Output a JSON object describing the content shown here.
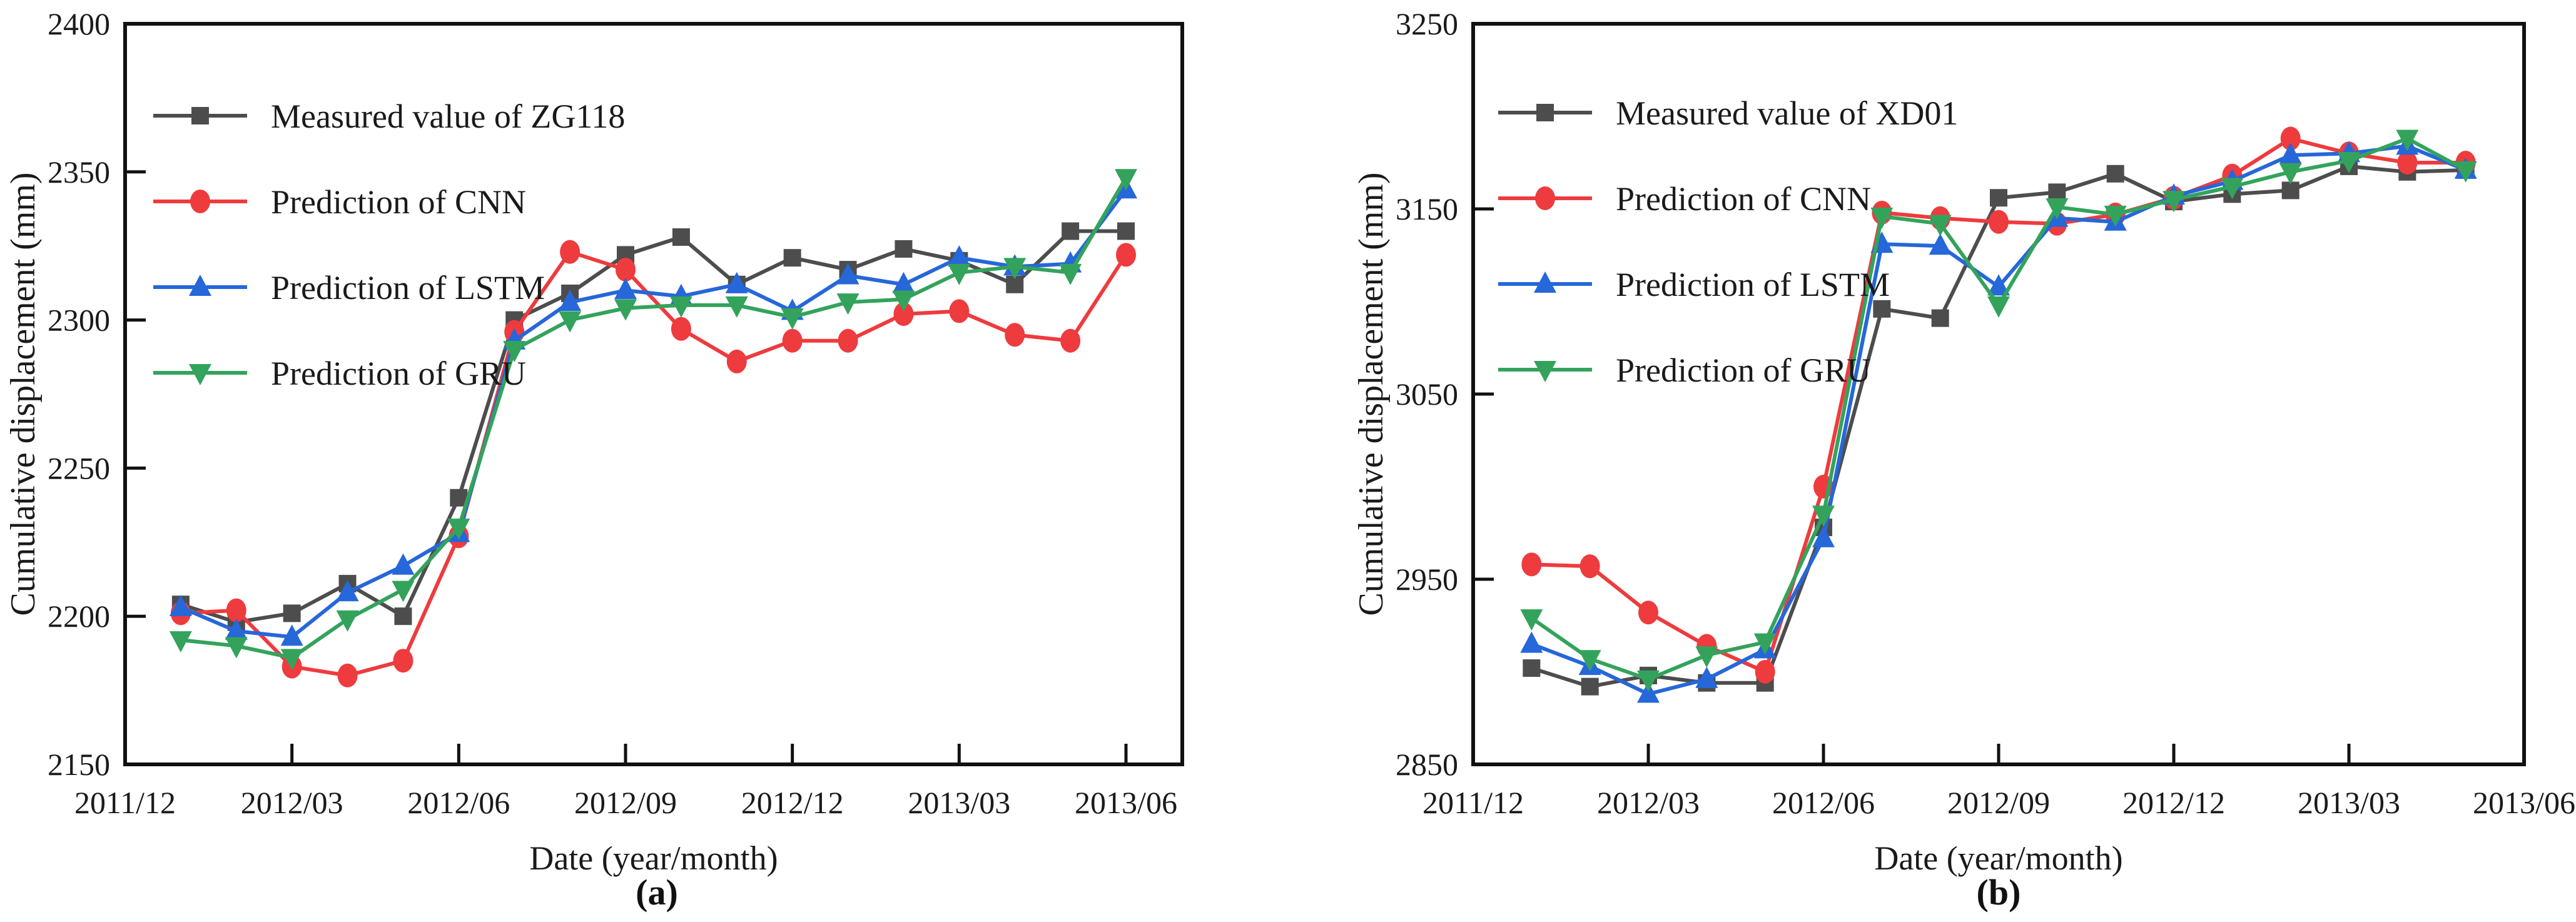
{
  "figure": {
    "background": "#ffffff",
    "caption_a": "(a)",
    "caption_b": "(b)"
  },
  "chart_data": [
    {
      "id": "a",
      "type": "line",
      "caption": "(a)",
      "xlabel": "Date (year/month)",
      "ylabel": "Cumulative displacement (mm)",
      "ylim": [
        2150,
        2400
      ],
      "yticks": [
        2150,
        2200,
        2250,
        2300,
        2350,
        2400
      ],
      "xtick_labels": [
        "2011/12",
        "2012/03",
        "2012/06",
        "2012/09",
        "2012/12",
        "2013/03",
        "2013/06"
      ],
      "xtick_months": [
        0,
        3,
        6,
        9,
        12,
        15,
        18
      ],
      "x_months": [
        1,
        2,
        3,
        4,
        5,
        6,
        7,
        8,
        9,
        10,
        11,
        12,
        13,
        14,
        15,
        16,
        17,
        18
      ],
      "grid": false,
      "legend_position": "top-left",
      "series": [
        {
          "name": "Measured value of ZG118",
          "color": "#4d4d4d",
          "marker": "square",
          "values": [
            2204,
            2198,
            2201,
            2211,
            2200,
            2240,
            2300,
            2309,
            2322,
            2328,
            2312,
            2321,
            2317,
            2324,
            2320,
            2312,
            2330,
            2330
          ]
        },
        {
          "name": "Prediction of CNN",
          "color": "#ee3b3e",
          "marker": "circle",
          "values": [
            2201,
            2202,
            2183,
            2180,
            2185,
            2227,
            2296,
            2323,
            2317,
            2297,
            2286,
            2293,
            2293,
            2302,
            2303,
            2295,
            2293,
            2322
          ]
        },
        {
          "name": "Prediction of LSTM",
          "color": "#2667d9",
          "marker": "triangle-up",
          "values": [
            2203,
            2195,
            2193,
            2208,
            2217,
            2228,
            2293,
            2306,
            2310,
            2308,
            2312,
            2303,
            2315,
            2312,
            2321,
            2318,
            2319,
            2344
          ]
        },
        {
          "name": "Prediction of GRU",
          "color": "#33a35c",
          "marker": "triangle-down",
          "values": [
            2192,
            2190,
            2186,
            2199,
            2209,
            2230,
            2290,
            2300,
            2304,
            2305,
            2305,
            2301,
            2306,
            2307,
            2316,
            2318,
            2316,
            2348
          ]
        }
      ]
    },
    {
      "id": "b",
      "type": "line",
      "caption": "(b)",
      "xlabel": "Date (year/month)",
      "ylabel": "Cumulative displacement (mm)",
      "ylim": [
        2850,
        3250
      ],
      "yticks": [
        2850,
        2950,
        3050,
        3150,
        3250
      ],
      "xtick_labels": [
        "2011/12",
        "2012/03",
        "2012/06",
        "2012/09",
        "2012/12",
        "2013/03",
        "2013/06"
      ],
      "xtick_months": [
        0,
        3,
        6,
        9,
        12,
        15,
        18
      ],
      "x_months": [
        1,
        2,
        3,
        4,
        5,
        6,
        7,
        8,
        9,
        10,
        11,
        12,
        13,
        14,
        15,
        16,
        17
      ],
      "grid": false,
      "legend_position": "top-left",
      "series": [
        {
          "name": "Measured value of XD01",
          "color": "#4d4d4d",
          "marker": "square",
          "values": [
            2902,
            2892,
            2898,
            2894,
            2894,
            2978,
            3096,
            3091,
            3156,
            3159,
            3169,
            3154,
            3158,
            3160,
            3173,
            3170,
            3171
          ]
        },
        {
          "name": "Prediction of CNN",
          "color": "#ee3b3e",
          "marker": "circle",
          "values": [
            2958,
            2957,
            2932,
            2914,
            2900,
            3000,
            3148,
            3145,
            3143,
            3142,
            3147,
            3156,
            3168,
            3188,
            3180,
            3175,
            3175
          ]
        },
        {
          "name": "Prediction of LSTM",
          "color": "#2667d9",
          "marker": "triangle-up",
          "values": [
            2915,
            2903,
            2888,
            2896,
            2912,
            2972,
            3131,
            3130,
            3108,
            3145,
            3143,
            3157,
            3165,
            3179,
            3180,
            3184,
            3171
          ]
        },
        {
          "name": "Prediction of GRU",
          "color": "#33a35c",
          "marker": "triangle-down",
          "values": [
            2929,
            2907,
            2896,
            2909,
            2916,
            2985,
            3146,
            3142,
            3098,
            3151,
            3147,
            3155,
            3162,
            3170,
            3176,
            3188,
            3171
          ]
        }
      ]
    }
  ]
}
